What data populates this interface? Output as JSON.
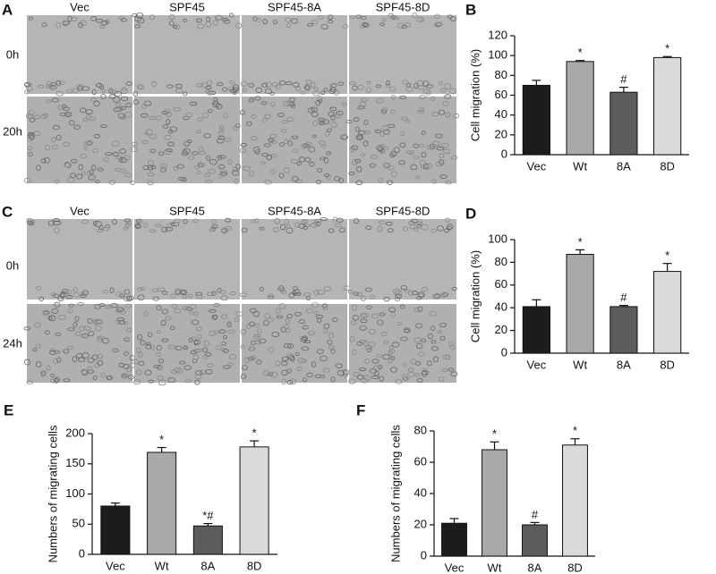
{
  "image_panels": [
    {
      "panel_label": "A",
      "columns": [
        "Vec",
        "SPF45",
        "SPF45-8A",
        "SPF45-8D"
      ],
      "rows": [
        "0h",
        "20h"
      ]
    },
    {
      "panel_label": "C",
      "columns": [
        "Vec",
        "SPF45",
        "SPF45-8A",
        "SPF45-8D"
      ],
      "rows": [
        "0h",
        "24h"
      ]
    }
  ],
  "chart_data": [
    {
      "type": "bar",
      "panel_label": "B",
      "ylabel": "Cell migration (%)",
      "categories": [
        "Vec",
        "Wt",
        "8A",
        "8D"
      ],
      "values": [
        70,
        94,
        63,
        98
      ],
      "errors": [
        5,
        1,
        5,
        1
      ],
      "bar_labels": [
        null,
        "*",
        "#",
        "*"
      ],
      "colors": [
        "#1c1c1c",
        "#a9a9a9",
        "#5c5c5c",
        "#dadada"
      ],
      "ylim": [
        0,
        120
      ],
      "yticks": [
        0,
        20,
        40,
        60,
        80,
        100,
        120
      ]
    },
    {
      "type": "bar",
      "panel_label": "D",
      "ylabel": "Cell migration (%)",
      "categories": [
        "Vec",
        "Wt",
        "8A",
        "8D"
      ],
      "values": [
        41,
        87,
        41,
        72
      ],
      "errors": [
        6,
        4,
        1,
        7
      ],
      "bar_labels": [
        null,
        "*",
        "#",
        "*"
      ],
      "colors": [
        "#1c1c1c",
        "#a9a9a9",
        "#5c5c5c",
        "#dadada"
      ],
      "ylim": [
        0,
        100
      ],
      "yticks": [
        0,
        20,
        40,
        60,
        80,
        100
      ]
    },
    {
      "type": "bar",
      "panel_label": "E",
      "ylabel": "Numbers of migrating cells",
      "categories": [
        "Vec",
        "Wt",
        "8A",
        "8D"
      ],
      "values": [
        80,
        169,
        47,
        178
      ],
      "errors": [
        5,
        8,
        4,
        10
      ],
      "bar_labels": [
        null,
        "*",
        "*#",
        "*"
      ],
      "colors": [
        "#1c1c1c",
        "#a9a9a9",
        "#5c5c5c",
        "#dadada"
      ],
      "ylim": [
        0,
        200
      ],
      "yticks": [
        0,
        50,
        100,
        150,
        200
      ]
    },
    {
      "type": "bar",
      "panel_label": "F",
      "ylabel": "Numbers of migrating cells",
      "categories": [
        "Vec",
        "Wt",
        "8A",
        "8D"
      ],
      "values": [
        21,
        68,
        20,
        71
      ],
      "errors": [
        3,
        5,
        1.5,
        4
      ],
      "bar_labels": [
        null,
        "*",
        "#",
        "*"
      ],
      "colors": [
        "#1c1c1c",
        "#a9a9a9",
        "#5c5c5c",
        "#dadada"
      ],
      "ylim": [
        0,
        80
      ],
      "yticks": [
        0,
        20,
        40,
        60,
        80
      ]
    }
  ]
}
